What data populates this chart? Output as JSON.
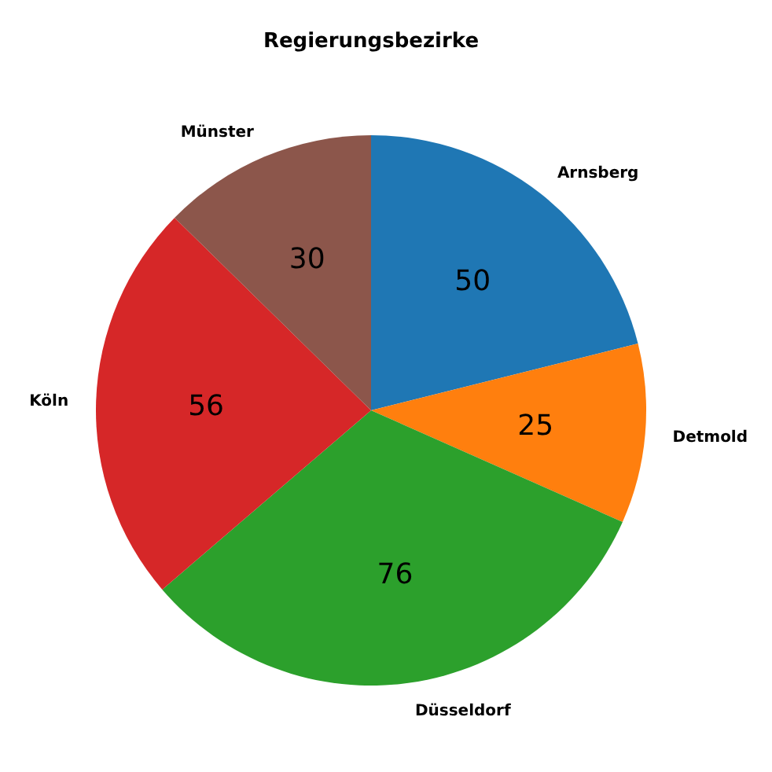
{
  "chart_data": {
    "type": "pie",
    "title": "Regierungsbezirke",
    "categories": [
      "Arnsberg",
      "Detmold",
      "Düsseldorf",
      "Köln",
      "Münster"
    ],
    "values": [
      50,
      25,
      76,
      56,
      30
    ],
    "colors": [
      "#1f77b4",
      "#ff7f0e",
      "#2ca02c",
      "#d62728",
      "#8c564b"
    ],
    "data_labels": true,
    "legend": false
  }
}
